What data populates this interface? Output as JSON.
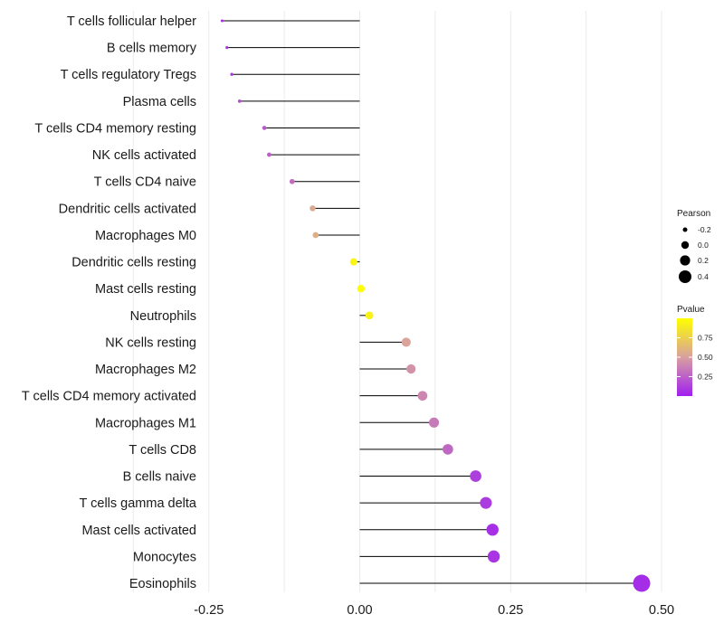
{
  "chart_data": {
    "type": "lollipop",
    "title": "",
    "xlabel": "",
    "ylabel": "",
    "xlim": [
      -0.5,
      0.53
    ],
    "xticks": [
      -0.25,
      0.0,
      0.25,
      0.5
    ],
    "xtick_labels": [
      "-0.25",
      "0.00",
      "0.25",
      "0.50"
    ],
    "grid": true,
    "categories": [
      "T cells follicular helper",
      "B cells memory",
      "T cells regulatory  Tregs",
      "Plasma cells",
      "T cells CD4 memory resting",
      "NK cells activated",
      "T cells CD4 naive",
      "Dendritic cells activated",
      "Macrophages M0",
      "Dendritic cells resting",
      "Mast cells resting",
      "Neutrophils",
      "NK cells resting",
      "Macrophages M2",
      "T cells CD4 memory activated",
      "Macrophages M1",
      "T cells CD8",
      "B cells naive",
      "T cells gamma delta",
      "Mast cells activated",
      "Monocytes",
      "Eosinophils"
    ],
    "pearson": [
      -0.228,
      -0.22,
      -0.212,
      -0.199,
      -0.158,
      -0.15,
      -0.112,
      -0.078,
      -0.073,
      -0.01,
      0.002,
      0.016,
      0.077,
      0.085,
      0.104,
      0.123,
      0.146,
      0.192,
      0.209,
      0.22,
      0.222,
      0.467
    ],
    "pvalue": [
      0.05,
      0.08,
      0.1,
      0.18,
      0.22,
      0.25,
      0.3,
      0.55,
      0.58,
      0.95,
      0.99,
      0.93,
      0.52,
      0.45,
      0.4,
      0.35,
      0.28,
      0.12,
      0.1,
      0.06,
      0.08,
      0.05
    ],
    "legend": {
      "size_title": "Pearson",
      "size_values": [
        -0.2,
        0.0,
        0.2,
        0.4
      ],
      "size_labels": [
        "-0.2",
        "0.0",
        "0.2",
        "0.4"
      ],
      "color_title": "Pvalue",
      "color_values": [
        0.25,
        0.5,
        0.75
      ],
      "color_labels": [
        "0.25",
        "0.50",
        "0.75"
      ],
      "color_range": [
        0.0,
        1.0
      ],
      "placement": "right"
    },
    "colors": {
      "low": "#a020f0",
      "mid": "#d8a0a0",
      "high": "#ffff00",
      "stem": "#000000",
      "grid": "#ebebeb"
    }
  }
}
